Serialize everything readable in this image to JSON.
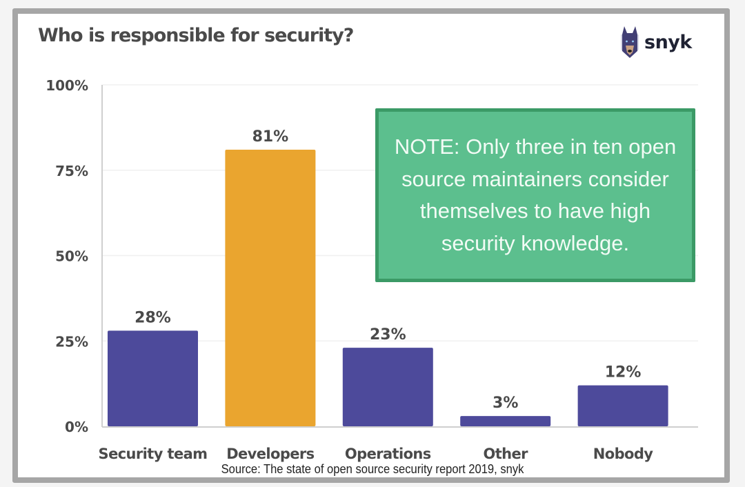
{
  "chart_data": {
    "type": "bar",
    "title": "Who is responsible for security?",
    "categories": [
      "Security team",
      "Developers",
      "Operations",
      "Other",
      "Nobody"
    ],
    "values": [
      28,
      81,
      23,
      3,
      12
    ],
    "value_labels": [
      "28%",
      "81%",
      "23%",
      "3%",
      "12%"
    ],
    "highlight_index": 1,
    "ylim": [
      0,
      100
    ],
    "yticks": [
      0,
      25,
      50,
      75,
      100
    ],
    "ytick_labels": [
      "0%",
      "25%",
      "50%",
      "75%",
      "100%"
    ],
    "xlabel": "",
    "ylabel": "",
    "grid": true,
    "legend": "none",
    "annotation": "NOTE: Only three in ten open source maintainers consider themselves to have high security knowledge.",
    "source": "Source: The state of open source security report 2019, snyk"
  },
  "brand": {
    "name": "snyk",
    "logo_icon": "doberman-icon"
  },
  "colors": {
    "bar": "#4d4a9b",
    "highlight": "#eaa52f",
    "note_fill": "#5cbf8e",
    "note_border": "#3b9a66",
    "text": "#4a4a4a",
    "axis": "#cfcfcf",
    "grid": "#f0f0f0"
  }
}
